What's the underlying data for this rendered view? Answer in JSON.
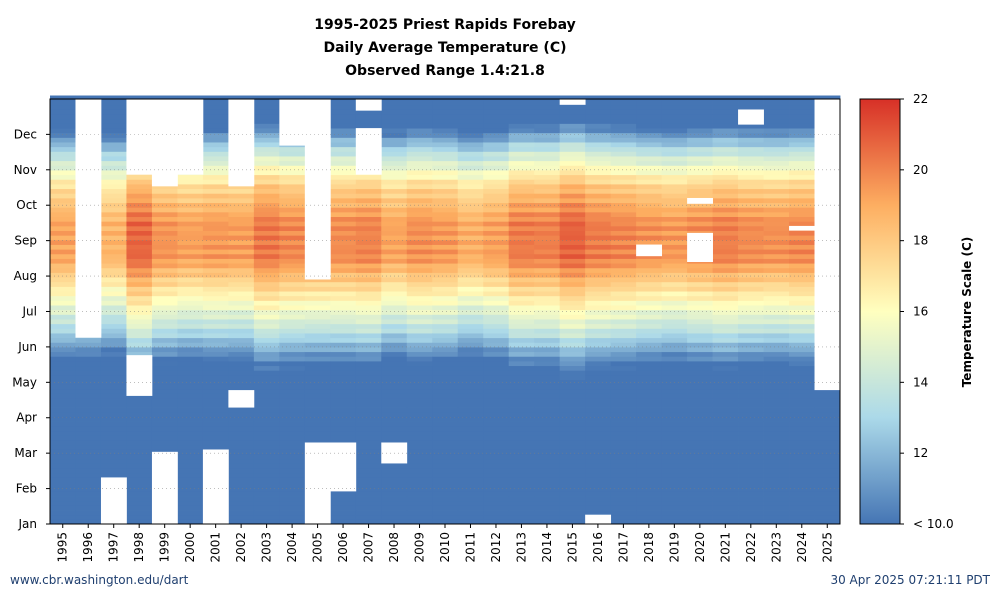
{
  "chart_data": {
    "type": "heatmap",
    "title": "1995-2025 Priest Rapids Forebay",
    "subtitle_lines": [
      "Daily Average Temperature (C)",
      "Observed Range 1.4:21.8"
    ],
    "x": [
      "1995",
      "1996",
      "1997",
      "1998",
      "1999",
      "2000",
      "2001",
      "2002",
      "2003",
      "2004",
      "2005",
      "2006",
      "2007",
      "2008",
      "2009",
      "2010",
      "2011",
      "2012",
      "2013",
      "2014",
      "2015",
      "2016",
      "2017",
      "2018",
      "2019",
      "2020",
      "2021",
      "2022",
      "2023",
      "2024",
      "2025"
    ],
    "y_ticks": [
      "Jan",
      "Feb",
      "Mar",
      "Apr",
      "May",
      "Jun",
      "Jul",
      "Aug",
      "Sep",
      "Oct",
      "Nov",
      "Dec"
    ],
    "value_units": "C",
    "colorbar": {
      "title": "Temperature Scale (C)",
      "min": 10,
      "max": 22,
      "ticks": [
        {
          "value": 10,
          "label": "< 10.0"
        },
        {
          "value": 12,
          "label": "12"
        },
        {
          "value": 14,
          "label": "14"
        },
        {
          "value": 16,
          "label": "16"
        },
        {
          "value": 18,
          "label": "18"
        },
        {
          "value": 20,
          "label": "20"
        },
        {
          "value": 22,
          "label": "22"
        }
      ]
    },
    "seasonal_profile": {
      "description_months": [
        1,
        2,
        3,
        4,
        5,
        6,
        7,
        8,
        9,
        10,
        11,
        12
      ],
      "approx_temperature_c": [
        4,
        3.5,
        4.5,
        7,
        9.5,
        13.5,
        16.5,
        19.5,
        19.5,
        17.5,
        13.5,
        8
      ]
    },
    "year_offsets_c": [
      -0.3,
      -0.4,
      -0.8,
      1.2,
      0.1,
      -0.2,
      0.0,
      -0.1,
      0.8,
      0.4,
      0.3,
      0.3,
      0.5,
      -0.3,
      0.2,
      0.0,
      -0.6,
      -0.2,
      0.7,
      0.6,
      1.3,
      0.7,
      0.5,
      0.2,
      0.0,
      0.3,
      0.6,
      0.3,
      0.2,
      0.4,
      0.0
    ],
    "missing_ranges": [
      {
        "year": "1996",
        "from_day": 160,
        "to_day": 365
      },
      {
        "year": "1997",
        "from_day": 0,
        "to_day": 40
      },
      {
        "year": "1998",
        "from_day": 110,
        "to_day": 145
      },
      {
        "year": "1998",
        "from_day": 300,
        "to_day": 365
      },
      {
        "year": "1999",
        "from_day": 0,
        "to_day": 62
      },
      {
        "year": "1999",
        "from_day": 290,
        "to_day": 365
      },
      {
        "year": "2000",
        "from_day": 300,
        "to_day": 365
      },
      {
        "year": "2001",
        "from_day": 0,
        "to_day": 64
      },
      {
        "year": "2002",
        "from_day": 100,
        "to_day": 115
      },
      {
        "year": "2002",
        "from_day": 290,
        "to_day": 365
      },
      {
        "year": "2004",
        "from_day": 325,
        "to_day": 365
      },
      {
        "year": "2005",
        "from_day": 0,
        "to_day": 70
      },
      {
        "year": "2005",
        "from_day": 210,
        "to_day": 365
      },
      {
        "year": "2006",
        "from_day": 28,
        "to_day": 70
      },
      {
        "year": "2007",
        "from_day": 300,
        "to_day": 340
      },
      {
        "year": "2007",
        "from_day": 355,
        "to_day": 365
      },
      {
        "year": "2008",
        "from_day": 52,
        "to_day": 70
      },
      {
        "year": "2015",
        "from_day": 360,
        "to_day": 365
      },
      {
        "year": "2016",
        "from_day": 0,
        "to_day": 8
      },
      {
        "year": "2018",
        "from_day": 230,
        "to_day": 240
      },
      {
        "year": "2020",
        "from_day": 225,
        "to_day": 250
      },
      {
        "year": "2020",
        "from_day": 275,
        "to_day": 280
      },
      {
        "year": "2022",
        "from_day": 343,
        "to_day": 356
      },
      {
        "year": "2024",
        "from_day": 252,
        "to_day": 256
      },
      {
        "year": "2025",
        "from_day": 115,
        "to_day": 365
      }
    ],
    "xlabel": "",
    "ylabel": ""
  },
  "footer": {
    "left": "www.cbr.washington.edu/dart",
    "right": "30 Apr 2025 07:21:11 PDT"
  },
  "colors": {
    "cold": "#4575b4",
    "cool": "#abd9e9",
    "mid": "#ffffbf",
    "warm": "#fdae61",
    "hot": "#d73027",
    "missing": "#ffffff",
    "footer_text": "#1f3f6f"
  }
}
